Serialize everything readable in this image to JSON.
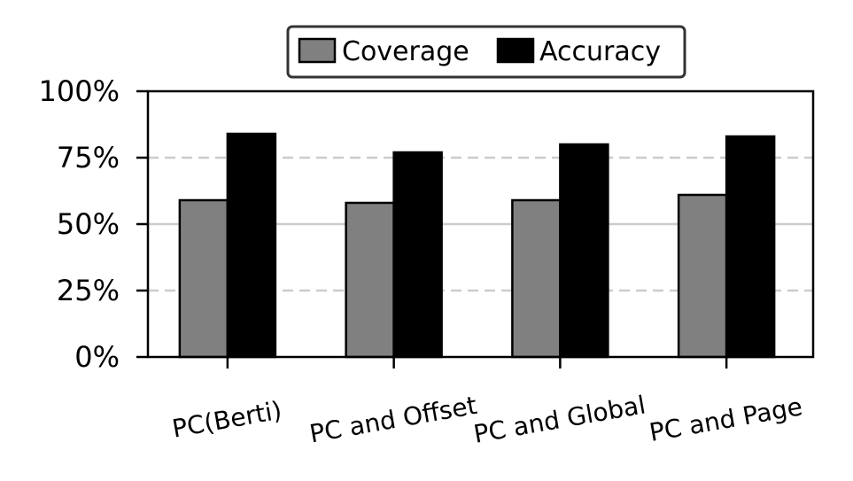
{
  "chart_data": {
    "type": "bar",
    "categories": [
      "PC(Berti)",
      "PC and Offset",
      "PC and Global",
      "PC and Page"
    ],
    "series": [
      {
        "name": "Coverage",
        "values": [
          59,
          58,
          59,
          61
        ],
        "color": "#808080"
      },
      {
        "name": "Accuracy",
        "values": [
          84,
          77,
          80,
          83
        ],
        "color": "#000000"
      }
    ],
    "ylim": [
      0,
      100
    ],
    "yticks": [
      0,
      25,
      50,
      75,
      100
    ],
    "ytick_labels": [
      "0%",
      "25%",
      "50%",
      "75%",
      "100%"
    ],
    "grid": "horizontal",
    "legend_position": "top-center",
    "title": "",
    "xlabel": "",
    "ylabel": ""
  }
}
